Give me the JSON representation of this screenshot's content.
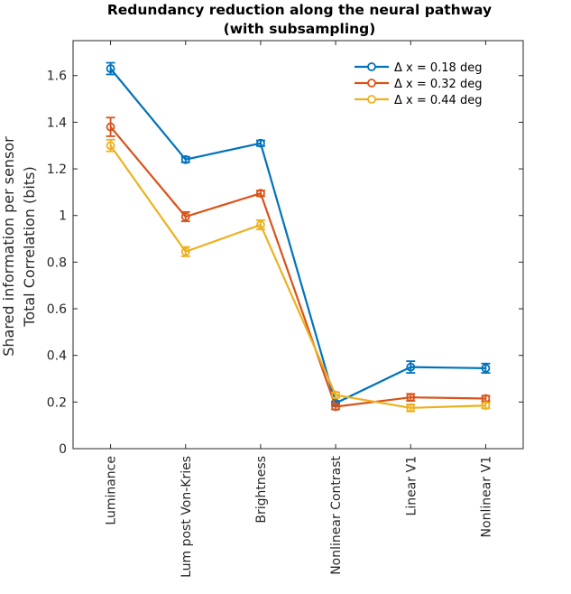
{
  "chart_data": {
    "type": "line",
    "title": [
      "Redundancy reduction along the neural pathway",
      "(with subsampling)"
    ],
    "ylabel": [
      "Shared information per sensor",
      "Total Correlation (bits)"
    ],
    "xlabel": "",
    "categories": [
      "Luminance",
      "Lum post Von-Kries",
      "Brightness",
      "Nonlinear Contrast",
      "Linear V1",
      "Nonlinear V1"
    ],
    "ylim": [
      0,
      1.75
    ],
    "yticks": [
      0,
      0.2,
      0.4,
      0.6,
      0.8,
      1,
      1.2,
      1.4,
      1.6
    ],
    "ytick_labels": [
      "0",
      "0.2",
      "0.4",
      "0.6",
      "0.8",
      "1",
      "1.2",
      "1.4",
      "1.6"
    ],
    "grid": false,
    "legend_position": "top-right",
    "series": [
      {
        "name": "Δ x = 0.18 deg",
        "color": "#0072BD",
        "values": [
          1.63,
          1.24,
          1.31,
          0.195,
          0.35,
          0.345
        ],
        "errors": [
          0.025,
          0.012,
          0.012,
          0.008,
          0.025,
          0.02
        ]
      },
      {
        "name": "Δ x = 0.32 deg",
        "color": "#D95319",
        "values": [
          1.38,
          0.995,
          1.095,
          0.18,
          0.22,
          0.215
        ],
        "errors": [
          0.04,
          0.02,
          0.012,
          0.012,
          0.015,
          0.012
        ]
      },
      {
        "name": "Δ x = 0.44 deg",
        "color": "#EDB120",
        "values": [
          1.3,
          0.845,
          0.96,
          0.23,
          0.175,
          0.185
        ],
        "errors": [
          0.025,
          0.02,
          0.02,
          0.012,
          0.015,
          0.012
        ]
      }
    ]
  }
}
